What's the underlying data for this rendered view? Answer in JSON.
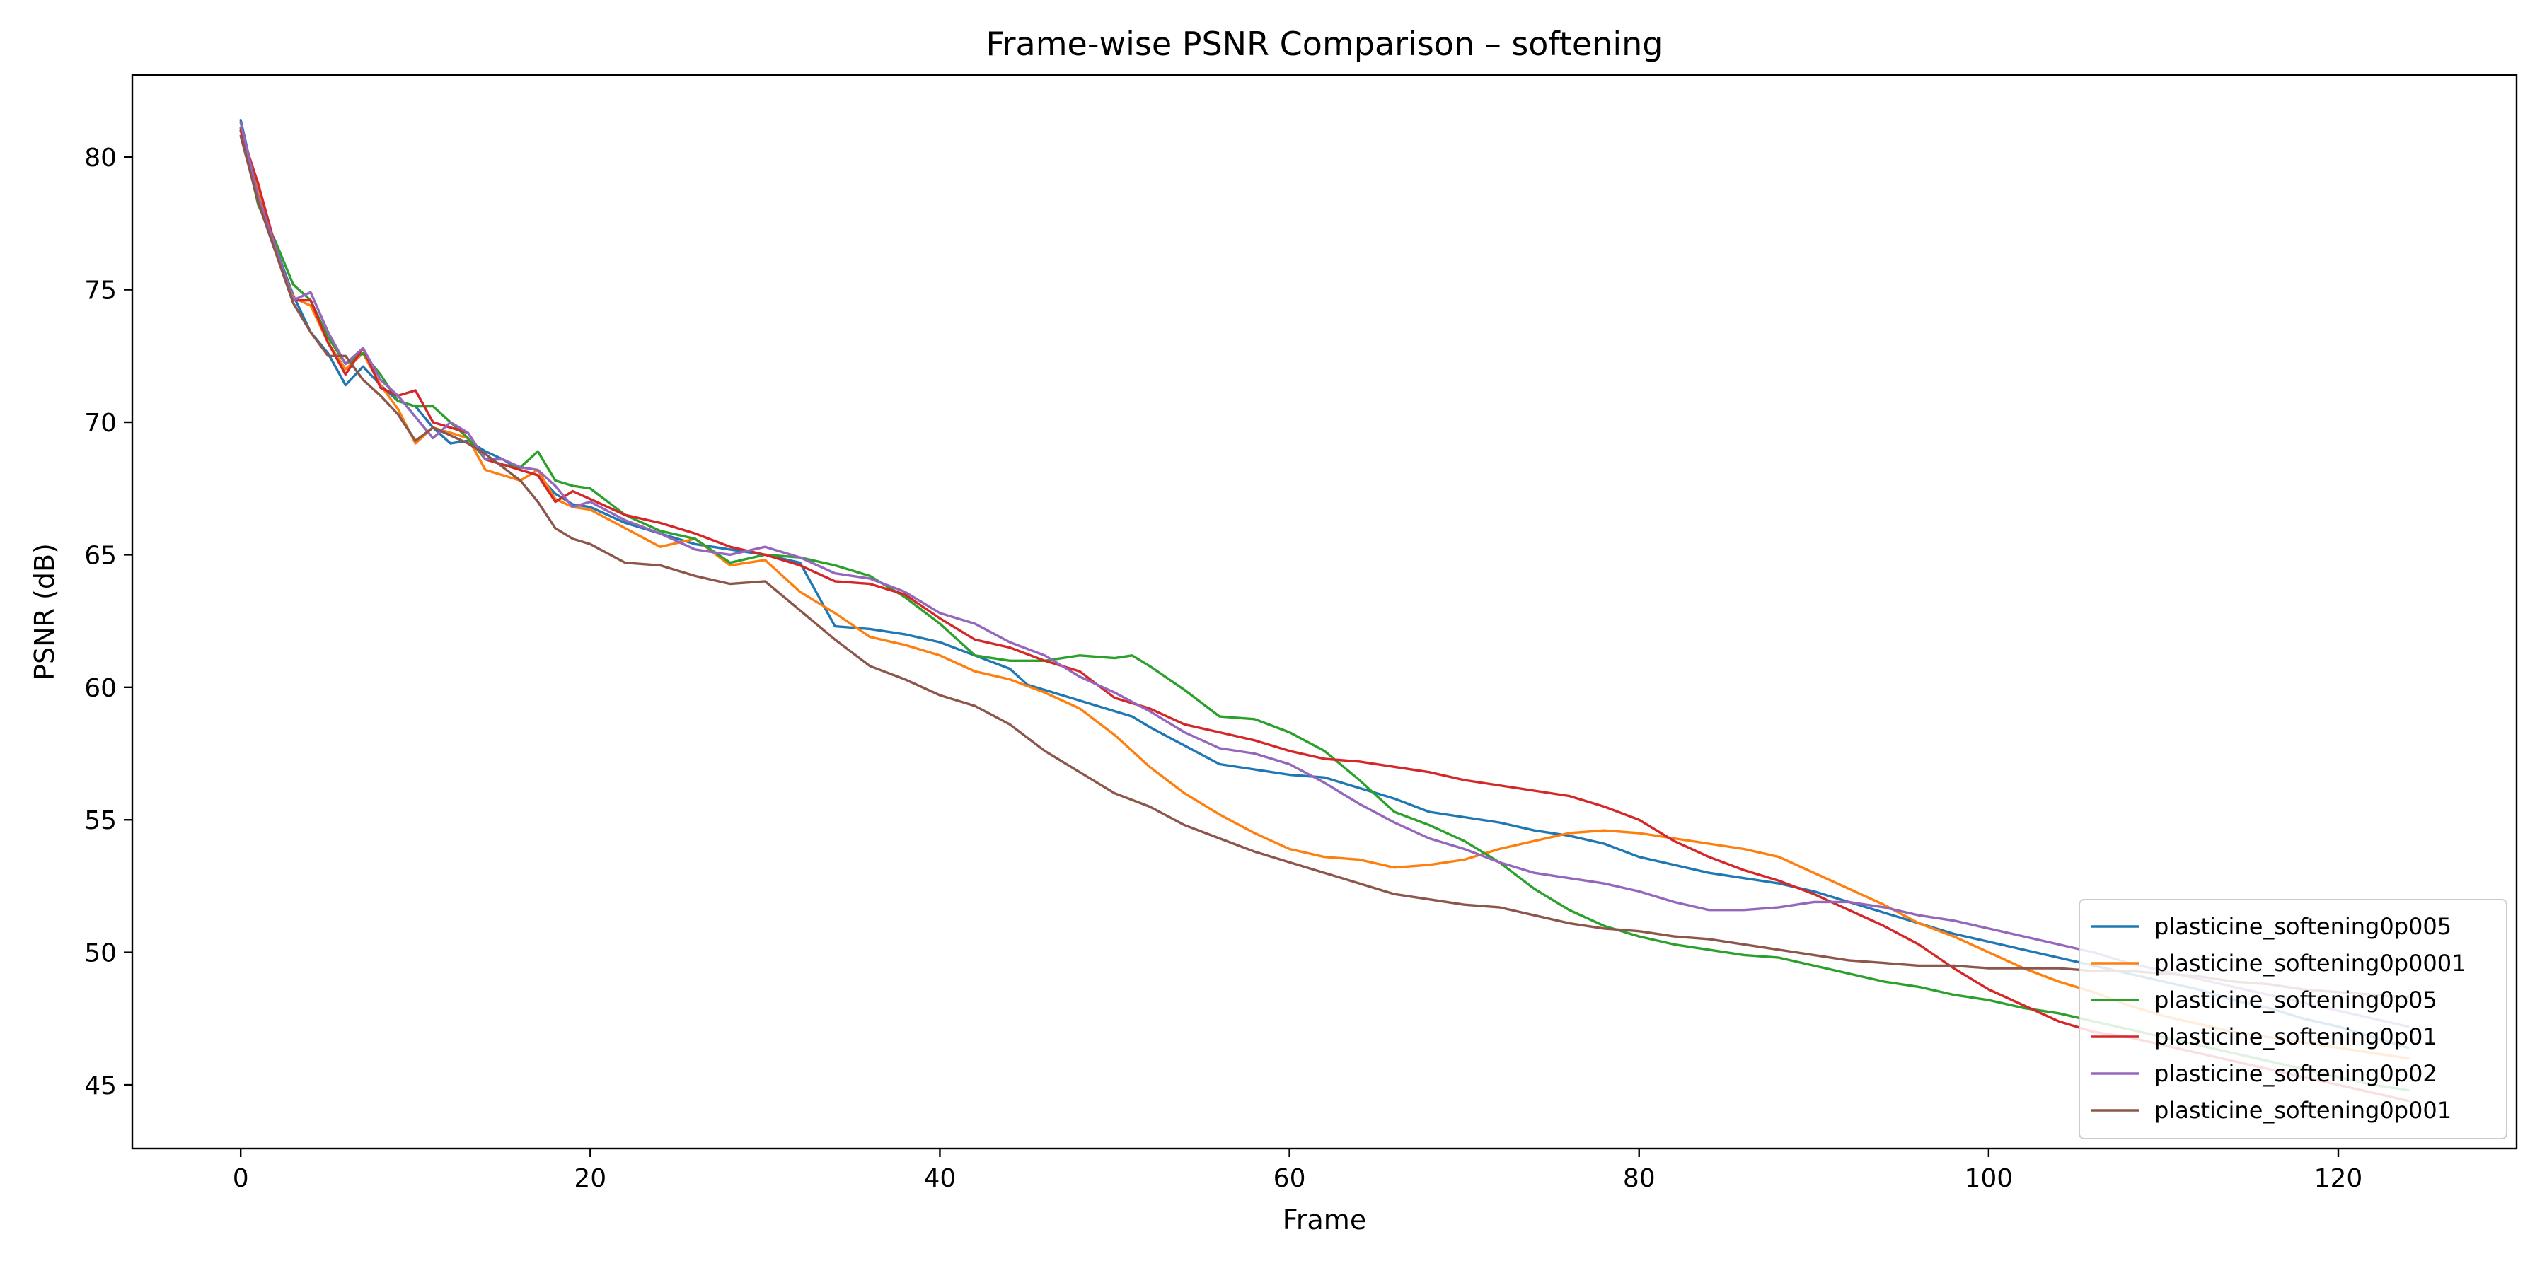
{
  "chart_data": {
    "type": "line",
    "title": "Frame-wise PSNR Comparison – softening",
    "xlabel": "Frame",
    "ylabel": "PSNR (dB)",
    "xlim": [
      -6.2,
      130.2
    ],
    "ylim": [
      42.6,
      83.1
    ],
    "xticks": [
      0,
      20,
      40,
      60,
      80,
      100,
      120
    ],
    "yticks": [
      45,
      50,
      55,
      60,
      65,
      70,
      75,
      80
    ],
    "grid": false,
    "legend_position": "lower right",
    "series": [
      {
        "name": "plasticine_softening0p005",
        "color": "#1f77b4",
        "x": [
          0,
          1,
          2,
          3,
          4,
          5,
          6,
          7,
          8,
          9,
          10,
          11,
          12,
          13,
          14,
          15,
          16,
          17,
          18,
          19,
          20,
          22,
          24,
          26,
          28,
          30,
          32,
          34,
          36,
          38,
          40,
          42,
          44,
          45,
          46,
          48,
          50,
          51,
          52,
          54,
          56,
          58,
          60,
          62,
          64,
          66,
          68,
          70,
          72,
          74,
          76,
          78,
          80,
          82,
          84,
          86,
          88,
          90,
          92,
          94,
          96,
          98,
          100,
          102,
          104,
          106,
          108,
          110,
          112,
          114,
          116,
          118,
          120,
          122,
          124
        ],
        "y": [
          81.4,
          78.5,
          76.6,
          74.8,
          73.4,
          72.6,
          71.4,
          72.1,
          71.4,
          70.8,
          70.6,
          69.8,
          69.2,
          69.3,
          68.9,
          68.6,
          68.2,
          68.0,
          67.3,
          66.9,
          66.8,
          66.2,
          65.8,
          65.4,
          65.2,
          65.0,
          64.7,
          62.3,
          62.2,
          62.0,
          61.7,
          61.2,
          60.7,
          60.1,
          59.9,
          59.5,
          59.1,
          58.9,
          58.5,
          57.8,
          57.1,
          56.9,
          56.7,
          56.6,
          56.2,
          55.8,
          55.3,
          55.1,
          54.9,
          54.6,
          54.4,
          54.1,
          53.6,
          53.3,
          53.0,
          52.8,
          52.6,
          52.3,
          51.9,
          51.5,
          51.1,
          50.7,
          50.4,
          50.1,
          49.8,
          49.5,
          49.2,
          48.9,
          48.6,
          48.2,
          47.9,
          47.5,
          47.2,
          46.8,
          46.4
        ]
      },
      {
        "name": "plasticine_softening0p0001",
        "color": "#ff7f0e",
        "x": [
          0,
          1,
          2,
          3,
          4,
          5,
          6,
          7,
          8,
          9,
          10,
          11,
          12,
          13,
          14,
          15,
          16,
          17,
          18,
          19,
          20,
          22,
          24,
          26,
          28,
          30,
          32,
          34,
          36,
          38,
          40,
          42,
          44,
          46,
          48,
          50,
          52,
          54,
          56,
          58,
          60,
          62,
          64,
          66,
          68,
          70,
          72,
          74,
          76,
          78,
          80,
          82,
          84,
          86,
          88,
          90,
          92,
          94,
          96,
          98,
          100,
          102,
          104,
          106,
          108,
          110,
          112,
          114,
          116,
          118,
          120,
          122,
          124
        ],
        "y": [
          81.0,
          78.8,
          76.5,
          74.7,
          74.4,
          73.0,
          72.0,
          72.6,
          71.4,
          70.5,
          69.2,
          69.8,
          69.6,
          69.4,
          68.2,
          68.0,
          67.8,
          68.2,
          67.1,
          66.8,
          66.7,
          66.0,
          65.3,
          65.6,
          64.6,
          64.8,
          63.6,
          62.8,
          61.9,
          61.6,
          61.2,
          60.6,
          60.3,
          59.8,
          59.2,
          58.2,
          57.0,
          56.0,
          55.2,
          54.5,
          53.9,
          53.6,
          53.5,
          53.2,
          53.3,
          53.5,
          53.9,
          54.2,
          54.5,
          54.6,
          54.5,
          54.3,
          54.1,
          53.9,
          53.6,
          53.0,
          52.4,
          51.8,
          51.1,
          50.6,
          50.0,
          49.4,
          48.9,
          48.5,
          48.0,
          47.6,
          47.3,
          47.0,
          46.8,
          46.6,
          46.4,
          46.2,
          46.0
        ]
      },
      {
        "name": "plasticine_softening0p05",
        "color": "#2ca02c",
        "x": [
          0,
          1,
          2,
          3,
          4,
          5,
          6,
          7,
          8,
          9,
          10,
          11,
          12,
          13,
          14,
          15,
          16,
          17,
          18,
          19,
          20,
          22,
          24,
          26,
          28,
          30,
          32,
          34,
          36,
          38,
          40,
          42,
          44,
          46,
          48,
          50,
          51,
          52,
          54,
          56,
          58,
          60,
          62,
          64,
          66,
          68,
          70,
          72,
          74,
          76,
          78,
          80,
          82,
          84,
          86,
          88,
          90,
          92,
          94,
          96,
          98,
          100,
          102,
          104,
          106,
          108,
          110,
          112,
          114,
          116,
          118,
          120,
          122,
          124
        ],
        "y": [
          81.1,
          78.2,
          76.8,
          75.2,
          74.6,
          73.2,
          72.2,
          72.6,
          71.8,
          70.8,
          70.6,
          70.6,
          70.0,
          69.4,
          68.6,
          68.4,
          68.3,
          68.9,
          67.8,
          67.6,
          67.5,
          66.5,
          65.9,
          65.6,
          64.7,
          65.0,
          64.9,
          64.6,
          64.2,
          63.4,
          62.4,
          61.2,
          61.0,
          61.0,
          61.2,
          61.1,
          61.2,
          60.8,
          59.9,
          58.9,
          58.8,
          58.3,
          57.6,
          56.5,
          55.3,
          54.8,
          54.2,
          53.4,
          52.4,
          51.6,
          51.0,
          50.6,
          50.3,
          50.1,
          49.9,
          49.8,
          49.5,
          49.2,
          48.9,
          48.7,
          48.4,
          48.2,
          47.9,
          47.7,
          47.4,
          47.1,
          46.8,
          46.5,
          46.2,
          45.9,
          45.6,
          45.3,
          45.0,
          44.8
        ]
      },
      {
        "name": "plasticine_softening0p01",
        "color": "#d62728",
        "x": [
          0,
          1,
          2,
          3,
          4,
          5,
          6,
          7,
          8,
          9,
          10,
          11,
          12,
          13,
          14,
          15,
          16,
          17,
          18,
          19,
          20,
          22,
          24,
          26,
          28,
          30,
          32,
          34,
          36,
          38,
          40,
          42,
          44,
          46,
          48,
          50,
          52,
          54,
          56,
          58,
          60,
          62,
          64,
          66,
          68,
          70,
          72,
          74,
          76,
          78,
          80,
          82,
          84,
          86,
          88,
          90,
          92,
          94,
          96,
          98,
          100,
          102,
          104,
          106,
          108,
          110,
          112,
          114,
          116,
          118,
          120,
          122,
          124
        ],
        "y": [
          81.0,
          79.0,
          76.6,
          74.6,
          74.6,
          73.0,
          71.8,
          72.8,
          71.3,
          71.0,
          71.2,
          70.0,
          69.8,
          69.6,
          68.6,
          68.4,
          68.2,
          68.0,
          67.0,
          67.4,
          67.1,
          66.5,
          66.2,
          65.8,
          65.3,
          65.0,
          64.6,
          64.0,
          63.9,
          63.5,
          62.6,
          61.8,
          61.5,
          61.0,
          60.6,
          59.6,
          59.2,
          58.6,
          58.3,
          58.0,
          57.6,
          57.3,
          57.2,
          57.0,
          56.8,
          56.5,
          56.3,
          56.1,
          55.9,
          55.5,
          55.0,
          54.2,
          53.6,
          53.1,
          52.7,
          52.2,
          51.6,
          51.0,
          50.3,
          49.4,
          48.6,
          48.0,
          47.4,
          47.0,
          46.8,
          46.5,
          46.2,
          45.9,
          45.6,
          45.3,
          45.0,
          44.7,
          44.4
        ]
      },
      {
        "name": "plasticine_softening0p02",
        "color": "#9467bd",
        "x": [
          0,
          1,
          2,
          3,
          4,
          5,
          6,
          7,
          8,
          9,
          10,
          11,
          12,
          13,
          14,
          15,
          16,
          17,
          18,
          19,
          20,
          22,
          24,
          26,
          28,
          30,
          32,
          34,
          36,
          38,
          40,
          42,
          44,
          46,
          48,
          50,
          52,
          54,
          56,
          58,
          60,
          62,
          64,
          66,
          68,
          70,
          72,
          74,
          76,
          78,
          80,
          82,
          84,
          86,
          88,
          90,
          92,
          94,
          96,
          98,
          100,
          102,
          104,
          106,
          108,
          110,
          112,
          114,
          116,
          118,
          120,
          122,
          124
        ],
        "y": [
          81.3,
          78.5,
          76.6,
          74.6,
          74.9,
          73.4,
          72.2,
          72.8,
          71.6,
          71.0,
          70.2,
          69.4,
          70.0,
          69.6,
          68.6,
          68.6,
          68.3,
          68.2,
          67.6,
          66.8,
          67.0,
          66.3,
          65.8,
          65.2,
          65.0,
          65.3,
          64.9,
          64.3,
          64.1,
          63.6,
          62.8,
          62.4,
          61.7,
          61.2,
          60.4,
          59.8,
          59.1,
          58.3,
          57.7,
          57.5,
          57.1,
          56.4,
          55.6,
          54.9,
          54.3,
          53.9,
          53.4,
          53.0,
          52.8,
          52.6,
          52.3,
          51.9,
          51.6,
          51.6,
          51.7,
          51.9,
          51.9,
          51.7,
          51.4,
          51.2,
          50.9,
          50.6,
          50.3,
          50.0,
          49.6,
          49.3,
          49.0,
          48.7,
          48.4,
          48.1,
          47.8,
          47.5,
          47.2
        ]
      },
      {
        "name": "plasticine_softening0p001",
        "color": "#8c564b",
        "x": [
          0,
          1,
          2,
          3,
          4,
          5,
          6,
          7,
          8,
          9,
          10,
          11,
          12,
          13,
          14,
          15,
          16,
          17,
          18,
          19,
          20,
          22,
          24,
          26,
          28,
          30,
          32,
          34,
          36,
          38,
          40,
          42,
          44,
          46,
          48,
          50,
          52,
          54,
          56,
          58,
          60,
          62,
          64,
          66,
          68,
          70,
          72,
          74,
          76,
          78,
          80,
          82,
          84,
          86,
          88,
          90,
          92,
          94,
          96,
          98,
          100,
          102,
          104,
          106,
          108,
          110,
          112,
          114,
          116,
          118,
          120,
          122,
          124
        ],
        "y": [
          80.8,
          78.3,
          76.4,
          74.5,
          73.4,
          72.5,
          72.5,
          71.6,
          71.0,
          70.3,
          69.3,
          69.8,
          69.5,
          69.2,
          68.8,
          68.3,
          67.8,
          67.0,
          66.0,
          65.6,
          65.4,
          64.7,
          64.6,
          64.2,
          63.9,
          64.0,
          62.9,
          61.8,
          60.8,
          60.3,
          59.7,
          59.3,
          58.6,
          57.6,
          56.8,
          56.0,
          55.5,
          54.8,
          54.3,
          53.8,
          53.4,
          53.0,
          52.6,
          52.2,
          52.0,
          51.8,
          51.7,
          51.4,
          51.1,
          50.9,
          50.8,
          50.6,
          50.5,
          50.3,
          50.1,
          49.9,
          49.7,
          49.6,
          49.5,
          49.5,
          49.4,
          49.4,
          49.4,
          49.3,
          49.3,
          49.2,
          49.1,
          48.9,
          48.8,
          48.6,
          48.5,
          48.4,
          48.3
        ]
      }
    ]
  }
}
